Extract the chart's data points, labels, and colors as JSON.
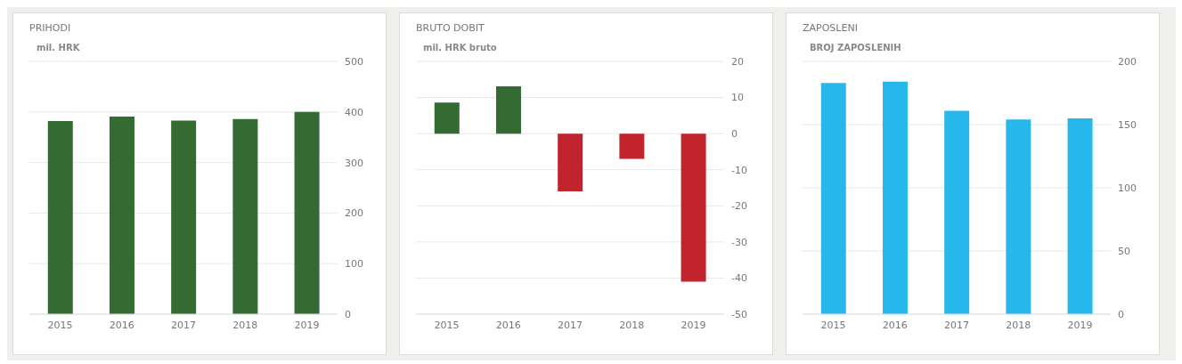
{
  "chart_data": [
    {
      "type": "bar",
      "title": "PRIHODI",
      "ylabel": "mil. HRK",
      "categories": [
        "2015",
        "2016",
        "2017",
        "2018",
        "2019"
      ],
      "values": [
        382,
        391,
        383,
        386,
        400
      ],
      "color": "#336b33",
      "ylim": [
        0,
        500
      ],
      "yticks": [
        0,
        100,
        200,
        300,
        400,
        500
      ],
      "grid": "y"
    },
    {
      "type": "bar",
      "title": "BRUTO DOBIT",
      "ylabel": "mil. HRK bruto",
      "categories": [
        "2015",
        "2016",
        "2017",
        "2018",
        "2019"
      ],
      "values": [
        8.6,
        13.1,
        -16,
        -7,
        -41
      ],
      "colors": [
        "#336b33",
        "#336b33",
        "#c1242d",
        "#c1242d",
        "#c1242d"
      ],
      "ylim": [
        -50,
        20
      ],
      "yticks": [
        -50,
        -40,
        -30,
        -20,
        -10,
        0,
        10,
        20
      ],
      "grid": "y"
    },
    {
      "type": "bar",
      "title": "ZAPOSLENI",
      "ylabel": "BROJ ZAPOSLENIH",
      "categories": [
        "2015",
        "2016",
        "2017",
        "2018",
        "2019"
      ],
      "values": [
        183,
        184,
        161,
        154,
        155
      ],
      "color": "#27b8eb",
      "ylim": [
        0,
        200
      ],
      "yticks": [
        0,
        50,
        100,
        150,
        200
      ],
      "grid": "y"
    }
  ]
}
